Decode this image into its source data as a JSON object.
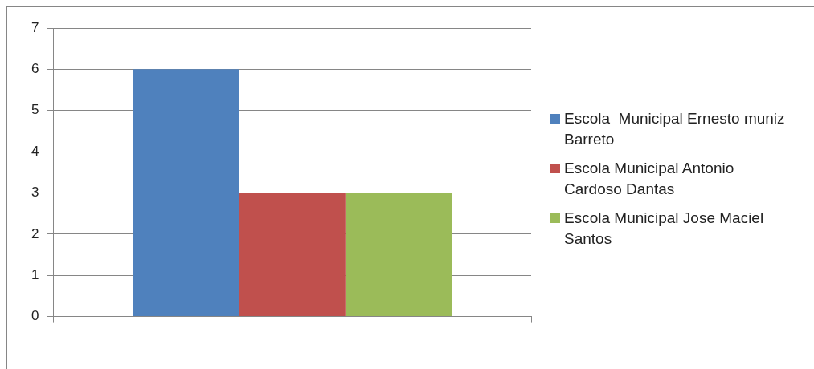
{
  "chart_data": {
    "type": "bar",
    "categories": [
      null
    ],
    "series": [
      {
        "name": "Escola  Municipal Ernesto muniz Barreto",
        "color": "#4f81bd",
        "values": [
          6
        ]
      },
      {
        "name": "Escola Municipal Antonio Cardoso Dantas",
        "color": "#c0504d",
        "values": [
          3
        ]
      },
      {
        "name": "Escola Municipal Jose Maciel Santos",
        "color": "#9bbb59",
        "values": [
          3
        ]
      }
    ],
    "ylim": [
      0,
      7
    ],
    "yticks": [
      0,
      1,
      2,
      3,
      4,
      5,
      6,
      7
    ],
    "grid": "y",
    "legend": "right"
  }
}
